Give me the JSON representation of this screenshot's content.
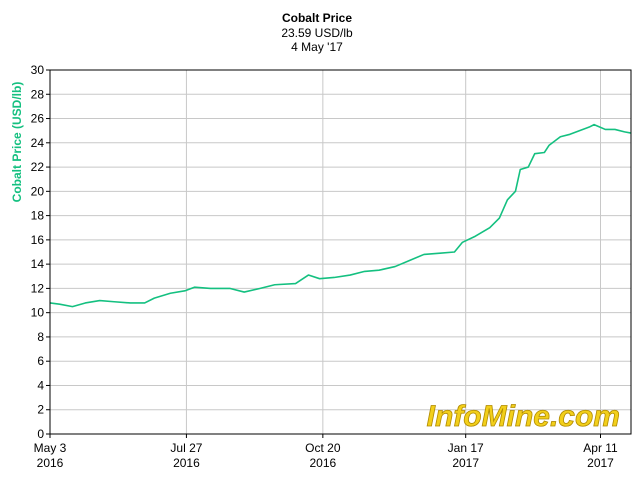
{
  "chart_data": {
    "type": "line",
    "title": "Cobalt Price",
    "subtitle": [
      "23.59 USD/lb",
      "4 May '17"
    ],
    "y_label": "Cobalt Price (USD/lb)",
    "watermark": "InfoMine.com",
    "color": "#14c080",
    "x": [
      "2016-05-03",
      "2016-05-09",
      "2016-05-17",
      "2016-05-25",
      "2016-06-03",
      "2016-06-12",
      "2016-06-22",
      "2016-07-01",
      "2016-07-07",
      "2016-07-17",
      "2016-07-26",
      "2016-08-01",
      "2016-08-11",
      "2016-08-23",
      "2016-09-01",
      "2016-09-11",
      "2016-09-20",
      "2016-10-03",
      "2016-10-11",
      "2016-10-18",
      "2016-10-27",
      "2016-11-06",
      "2016-11-15",
      "2016-11-24",
      "2016-12-04",
      "2016-12-13",
      "2016-12-22",
      "2017-01-01",
      "2017-01-10",
      "2017-01-15",
      "2017-01-23",
      "2017-02-01",
      "2017-02-07",
      "2017-02-12",
      "2017-02-17",
      "2017-02-20",
      "2017-02-25",
      "2017-03-01",
      "2017-03-07",
      "2017-03-10",
      "2017-03-17",
      "2017-03-23",
      "2017-03-29",
      "2017-04-04",
      "2017-04-07",
      "2017-04-14",
      "2017-04-20",
      "2017-04-26",
      "2017-04-30"
    ],
    "values": [
      10.8,
      10.7,
      10.5,
      10.8,
      11.0,
      10.9,
      10.8,
      10.8,
      11.2,
      11.6,
      11.8,
      12.1,
      12.0,
      12.0,
      11.7,
      12.0,
      12.3,
      12.4,
      13.1,
      12.8,
      12.9,
      13.1,
      13.4,
      13.5,
      13.8,
      14.3,
      14.8,
      14.9,
      15.0,
      15.8,
      16.3,
      17.0,
      17.8,
      19.3,
      20.0,
      21.8,
      22.0,
      23.1,
      23.2,
      23.8,
      24.5,
      24.7,
      25.0,
      25.3,
      25.5,
      25.1,
      25.1,
      24.9,
      24.8
    ],
    "xlim": [
      "2016-05-03",
      "2017-04-30"
    ],
    "xticks": [
      {
        "value": "2016-05-03",
        "label": [
          "May 3",
          "2016"
        ]
      },
      {
        "value": "2016-07-27",
        "label": [
          "Jul 27",
          "2016"
        ]
      },
      {
        "value": "2016-10-20",
        "label": [
          "Oct 20",
          "2016"
        ]
      },
      {
        "value": "2017-01-17",
        "label": [
          "Jan 17",
          "2017"
        ]
      },
      {
        "value": "2017-04-11",
        "label": [
          "Apr 11",
          "2017"
        ]
      }
    ],
    "ylim": [
      0,
      30
    ],
    "yticks": [
      0,
      2,
      4,
      6,
      8,
      10,
      12,
      14,
      16,
      18,
      20,
      22,
      24,
      26,
      28,
      30
    ],
    "grid": true
  }
}
